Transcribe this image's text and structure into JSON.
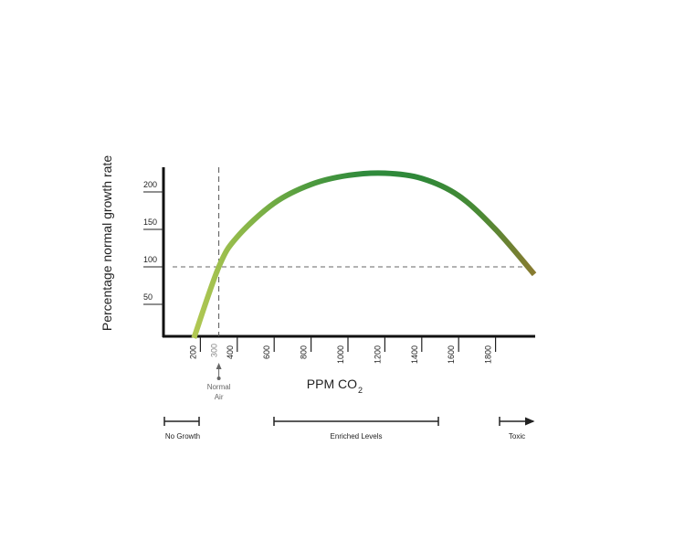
{
  "chart_data": {
    "type": "line",
    "y_label": "Percentage normal growth rate",
    "x_label": "PPM CO",
    "x_label_subscript": "2",
    "x": [
      165,
      300,
      400,
      600,
      800,
      1000,
      1200,
      1400,
      1600,
      1800,
      2010
    ],
    "series": [
      {
        "values": [
          5,
          100,
          140,
          185,
          210,
          222,
          225,
          218,
          195,
          150,
          90
        ],
        "colors": [
          "#b2c853",
          "#86b548",
          "#4f9b3e",
          "#2f8a3c",
          "#2f8838",
          "#4a8a35",
          "#8c7a30"
        ]
      }
    ],
    "xlim": [
      0,
      2000
    ],
    "ylim": [
      0,
      230
    ],
    "xticks": [
      200,
      400,
      600,
      800,
      1000,
      1200,
      1400,
      1600,
      1800
    ],
    "yticks": [
      50,
      100,
      150,
      200
    ],
    "reference_x": {
      "value": 300,
      "label": "300",
      "text_line1": "Normal",
      "text_line2": "Air"
    },
    "reference_y": 100,
    "ranges": {
      "no_growth": "No Growth",
      "enriched": "Enriched Levels",
      "toxic": "Toxic"
    }
  }
}
